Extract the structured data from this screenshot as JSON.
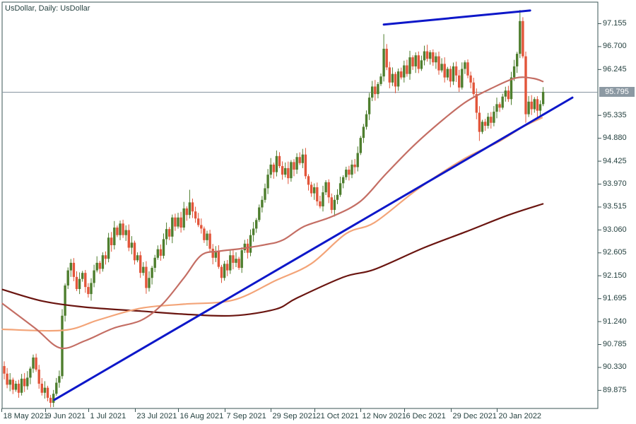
{
  "title": "UsDollar, Daily:  UsDollar",
  "colors": {
    "background": "#FFFFFF",
    "frame": "#3A5454",
    "text": "#24403F",
    "bull_candle": "#4E7E2E",
    "bear_candle": "#E2553A",
    "ma_rose": "#C46E64",
    "ma_salmon": "#F3A478",
    "ma_maroon": "#6A1510",
    "trendline_blue": "#0D17C9",
    "current_price_line": "#8795A0",
    "current_price_box_bg": "#8C99A3",
    "current_price_box_text": "#FFFFFF"
  },
  "price_axis": {
    "labels": [
      "97.155",
      "96.700",
      "96.245",
      "95.335",
      "94.880",
      "94.425",
      "93.970",
      "93.515",
      "93.060",
      "92.605",
      "92.150",
      "91.695",
      "91.240",
      "90.785",
      "90.330",
      "89.875"
    ],
    "current_price": "95.795"
  },
  "time_axis": {
    "labels": [
      "18 May 2021",
      "9 Jun 2021",
      "1 Jul 2021",
      "23 Jul 2021",
      "16 Aug 2021",
      "7 Sep 2021",
      "29 Sep 2021",
      "21 Oct 2021",
      "12 Nov 2021",
      "6 Dec 2021",
      "29 Dec 2021",
      "20 Jan 2022"
    ]
  },
  "chart_data": {
    "type": "candlestick",
    "symbol": "UsDollar",
    "timeframe": "Daily",
    "title": "UsDollar, Daily:  UsDollar",
    "ylim": [
      89.5,
      97.6
    ],
    "price_step": 0.455,
    "grid": false,
    "current_price": 95.795,
    "first_open": 90.35,
    "closes": [
      90.2,
      89.98,
      90.08,
      89.88,
      90.0,
      89.82,
      90.1,
      89.95,
      90.12,
      90.3,
      90.52,
      90.28,
      90.0,
      89.82,
      89.92,
      89.72,
      89.62,
      89.8,
      90.02,
      90.15,
      91.35,
      91.95,
      92.25,
      92.4,
      92.12,
      91.88,
      92.08,
      92.2,
      91.92,
      91.78,
      92.0,
      92.25,
      92.4,
      92.28,
      92.55,
      92.48,
      92.9,
      92.75,
      93.1,
      92.95,
      93.18,
      92.95,
      93.05,
      92.7,
      92.8,
      92.45,
      92.55,
      92.2,
      92.32,
      91.9,
      92.1,
      92.3,
      92.5,
      92.67,
      92.54,
      92.87,
      93.07,
      92.92,
      93.3,
      93.12,
      93.3,
      93.1,
      93.48,
      93.35,
      93.6,
      93.42,
      93.28,
      93.15,
      93.08,
      92.85,
      92.98,
      92.68,
      92.5,
      92.62,
      92.32,
      92.1,
      92.38,
      92.25,
      92.55,
      92.4,
      92.48,
      92.3,
      92.65,
      92.78,
      92.6,
      92.95,
      93.08,
      93.25,
      93.5,
      93.65,
      93.88,
      94.15,
      94.35,
      94.2,
      94.52,
      94.32,
      94.15,
      94.28,
      94.08,
      94.4,
      94.25,
      94.5,
      94.38,
      94.55,
      94.12,
      93.95,
      93.78,
      93.9,
      93.62,
      93.52,
      93.8,
      94.0,
      93.7,
      93.45,
      93.65,
      93.75,
      93.98,
      94.1,
      94.25,
      94.15,
      94.35,
      94.3,
      94.58,
      94.88,
      95.1,
      95.35,
      95.68,
      95.9,
      95.75,
      95.95,
      96.1,
      96.65,
      96.28,
      95.98,
      96.15,
      95.9,
      96.2,
      96.08,
      96.32,
      96.15,
      96.48,
      96.3,
      96.52,
      96.25,
      96.42,
      96.6,
      96.45,
      96.58,
      96.38,
      96.5,
      96.22,
      96.35,
      96.08,
      96.25,
      96.0,
      96.3,
      96.12,
      95.88,
      96.25,
      96.38,
      96.12,
      95.98,
      95.75,
      95.38,
      95.0,
      95.2,
      95.12,
      95.3,
      95.18,
      95.4,
      95.55,
      95.48,
      95.7,
      95.82,
      95.65,
      96.08,
      96.3,
      96.55,
      97.2,
      96.5,
      95.35,
      95.6,
      95.45,
      95.65,
      95.42,
      95.55,
      95.795
    ],
    "wick_overrides": {
      "16": {
        "l": 89.53
      },
      "64": {
        "h": 93.85
      },
      "94": {
        "h": 94.63
      },
      "131": {
        "h": 96.94
      },
      "164": {
        "l": 94.82
      },
      "178": {
        "h": 97.42
      },
      "180": {
        "l": 95.18
      }
    },
    "date_tick_indices": [
      0,
      15,
      30,
      46,
      61,
      77,
      93,
      108,
      124,
      139,
      155,
      171
    ],
    "moving_averages": [
      {
        "name": "ma-slow-maroon",
        "color_key": "ma_maroon",
        "width": 2.2,
        "points": [
          [
            -1.5,
            91.87
          ],
          [
            13.2,
            91.64
          ],
          [
            27.8,
            91.52
          ],
          [
            47.3,
            91.44
          ],
          [
            62.0,
            91.38
          ],
          [
            79.0,
            91.35
          ],
          [
            93.7,
            91.48
          ],
          [
            101.0,
            91.7
          ],
          [
            117.3,
            92.12
          ],
          [
            127.8,
            92.27
          ],
          [
            144.9,
            92.7
          ],
          [
            159.5,
            93.02
          ],
          [
            174.1,
            93.35
          ],
          [
            185.9,
            93.57
          ]
        ]
      },
      {
        "name": "ma-mid-salmon",
        "color_key": "ma_salmon",
        "width": 2.2,
        "points": [
          [
            -1.5,
            91.08
          ],
          [
            20.5,
            91.06
          ],
          [
            32.7,
            91.27
          ],
          [
            47.3,
            91.5
          ],
          [
            62.0,
            91.58
          ],
          [
            79.0,
            91.66
          ],
          [
            93.7,
            92.05
          ],
          [
            105.9,
            92.38
          ],
          [
            118.0,
            92.98
          ],
          [
            127.8,
            93.2
          ],
          [
            142.4,
            93.85
          ],
          [
            158.3,
            94.45
          ],
          [
            170.5,
            94.8
          ],
          [
            179.0,
            95.1
          ],
          [
            185.6,
            95.28
          ]
        ]
      },
      {
        "name": "ma-fast-rose",
        "color_key": "ma_rose",
        "width": 2.2,
        "points": [
          [
            -1.5,
            91.59
          ],
          [
            10.7,
            91.1
          ],
          [
            19.3,
            90.71
          ],
          [
            27.8,
            90.85
          ],
          [
            37.6,
            91.1
          ],
          [
            47.3,
            91.26
          ],
          [
            54.6,
            91.58
          ],
          [
            62.0,
            92.1
          ],
          [
            68.0,
            92.55
          ],
          [
            74.1,
            92.63
          ],
          [
            81.5,
            92.68
          ],
          [
            90.0,
            92.76
          ],
          [
            96.1,
            92.85
          ],
          [
            103.4,
            93.12
          ],
          [
            113.2,
            93.32
          ],
          [
            122.9,
            93.62
          ],
          [
            131.5,
            94.15
          ],
          [
            141.2,
            94.72
          ],
          [
            151.0,
            95.22
          ],
          [
            159.5,
            95.6
          ],
          [
            168.0,
            95.86
          ],
          [
            176.6,
            96.07
          ],
          [
            182.7,
            96.06
          ],
          [
            185.9,
            96.0
          ]
        ]
      }
    ],
    "trendlines": [
      {
        "name": "support-trendline",
        "color_key": "trendline_blue",
        "width": 3,
        "from": [
          17.3,
          89.68
        ],
        "to": [
          196.1,
          95.68
        ]
      },
      {
        "name": "resistance-trendline",
        "color_key": "trendline_blue",
        "width": 3,
        "from": [
          131.0,
          97.13
        ],
        "to": [
          181.5,
          97.41
        ]
      }
    ]
  }
}
